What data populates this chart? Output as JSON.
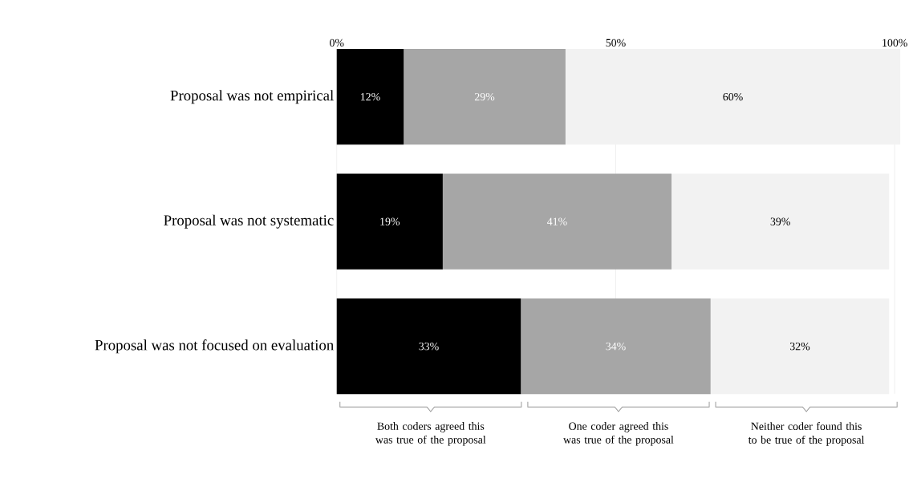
{
  "chart_data": {
    "type": "bar",
    "orientation": "horizontal",
    "stacked": true,
    "categories": [
      "Proposal was not empirical",
      "Proposal was not systematic",
      "Proposal was not focused on evaluation"
    ],
    "series": [
      {
        "name": "Both coders agreed this was true of the proposal",
        "color": "#000000",
        "values": [
          12,
          19,
          33
        ],
        "value_labels": [
          "12%",
          "19%",
          "33%"
        ]
      },
      {
        "name": "One coder agreed this was true of the proposal",
        "color": "#a6a6a6",
        "values": [
          29,
          41,
          34
        ],
        "value_labels": [
          "29%",
          "41%",
          "34%"
        ]
      },
      {
        "name": "Neither coder found this to be true of the proposal",
        "color": "#f2f2f2",
        "values": [
          60,
          39,
          32
        ],
        "value_labels": [
          "60%",
          "39%",
          "32%"
        ]
      }
    ],
    "xlim": [
      0,
      101
    ],
    "xticks": [
      {
        "value": 0,
        "label": "0%"
      },
      {
        "value": 50,
        "label": "50%"
      },
      {
        "value": 100,
        "label": "100%"
      }
    ],
    "grid": "x",
    "legend": "bottom"
  }
}
